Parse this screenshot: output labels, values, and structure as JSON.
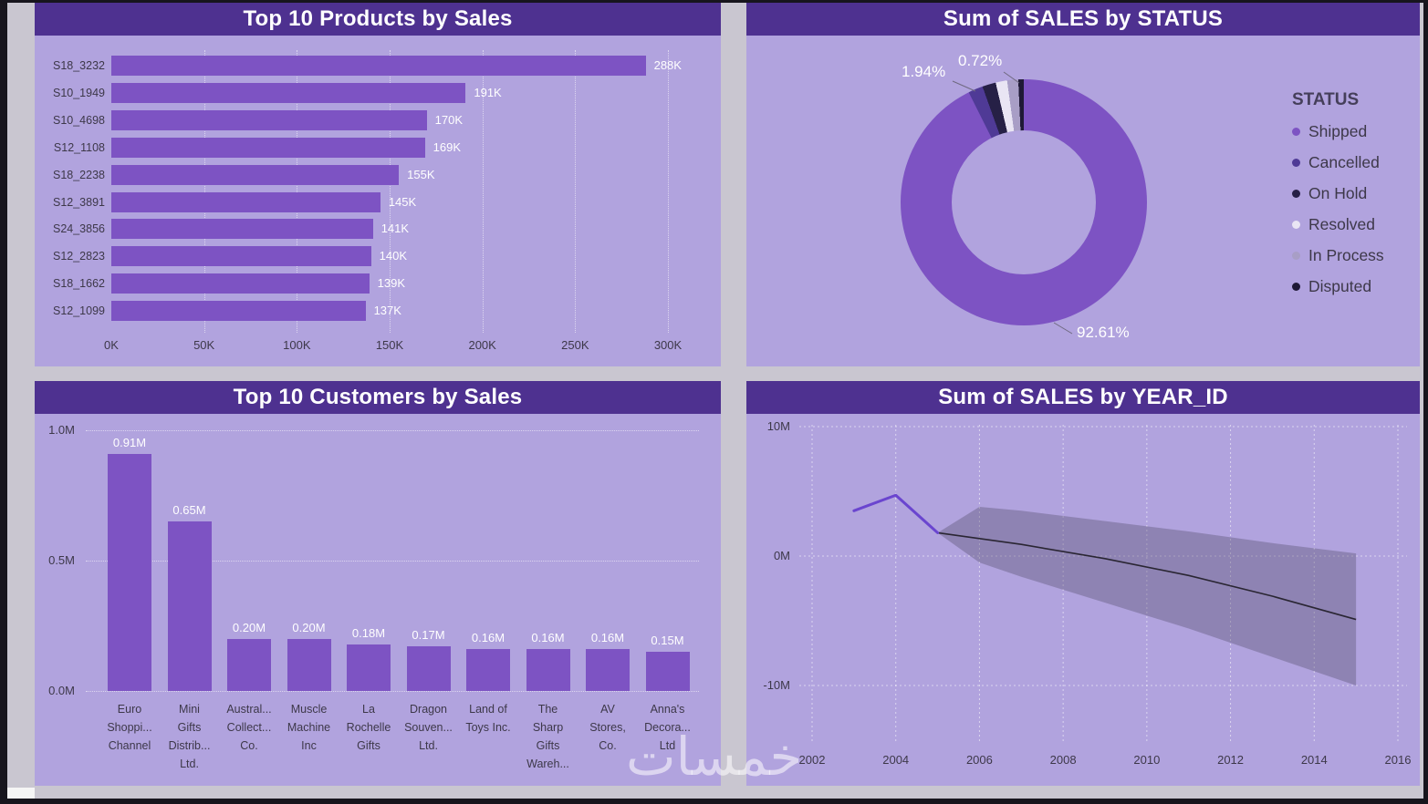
{
  "watermark": "خمسات",
  "theme": {
    "page_bg": "#c9c6d0",
    "frame": "#17151d",
    "panel_bg": "#b1a3de",
    "title_bg": "#4e3190",
    "title_text": "#ffffff",
    "axis_text": "#3d3849",
    "value_label_text": "#ffffff",
    "gridline": "rgba(255,255,255,0.55)"
  },
  "chart_data": [
    {
      "type": "bar",
      "orientation": "horizontal",
      "title": "Top 10 Products by Sales",
      "categories": [
        "S18_3232",
        "S10_1949",
        "S10_4698",
        "S12_1108",
        "S18_2238",
        "S12_3891",
        "S24_3856",
        "S12_2823",
        "S18_1662",
        "S12_1099"
      ],
      "values": [
        288,
        191,
        170,
        169,
        155,
        145,
        141,
        140,
        139,
        137
      ],
      "unit": "K",
      "value_labels": [
        "288K",
        "191K",
        "170K",
        "169K",
        "155K",
        "145K",
        "141K",
        "140K",
        "139K",
        "137K"
      ],
      "x_ticks": [
        "0K",
        "50K",
        "100K",
        "150K",
        "200K",
        "250K",
        "300K"
      ],
      "x_tick_values": [
        0,
        50,
        100,
        150,
        200,
        250,
        300
      ],
      "xlim": [
        0,
        300
      ],
      "bar_color": "#7d53c3"
    },
    {
      "type": "pie",
      "subtype": "donut",
      "title": "Sum of SALES by STATUS",
      "legend_title": "STATUS",
      "legend_position": "right",
      "segments": [
        {
          "label": "Shipped",
          "pct": 92.61,
          "color": "#7d53c3",
          "data_label": "92.61%"
        },
        {
          "label": "Cancelled",
          "pct": 1.94,
          "color": "#4f3a96",
          "data_label": "1.94%"
        },
        {
          "label": "On Hold",
          "pct": 1.78,
          "color": "#262046",
          "data_label": ""
        },
        {
          "label": "Resolved",
          "pct": 1.5,
          "color": "#e9e5f4",
          "data_label": ""
        },
        {
          "label": "In Process",
          "pct": 1.45,
          "color": "#a89ec6",
          "data_label": ""
        },
        {
          "label": "Disputed",
          "pct": 0.72,
          "color": "#1f1936",
          "data_label": "0.72%"
        }
      ]
    },
    {
      "type": "bar",
      "orientation": "vertical",
      "title": "Top 10 Customers by Sales",
      "categories": [
        [
          "Euro",
          "Shoppi...",
          "Channel"
        ],
        [
          "Mini",
          "Gifts",
          "Distrib...",
          "Ltd."
        ],
        [
          "Austral...",
          "Collect...",
          "Co."
        ],
        [
          "Muscle",
          "Machine",
          "Inc"
        ],
        [
          "La",
          "Rochelle",
          "Gifts"
        ],
        [
          "Dragon",
          "Souven...",
          "Ltd."
        ],
        [
          "Land of",
          "Toys Inc."
        ],
        [
          "The",
          "Sharp",
          "Gifts",
          "Wareh..."
        ],
        [
          "AV",
          "Stores,",
          "Co."
        ],
        [
          "Anna's",
          "Decora...",
          "Ltd"
        ]
      ],
      "values": [
        0.91,
        0.65,
        0.2,
        0.2,
        0.18,
        0.17,
        0.16,
        0.16,
        0.16,
        0.15
      ],
      "unit": "M",
      "value_labels": [
        "0.91M",
        "0.65M",
        "0.20M",
        "0.20M",
        "0.18M",
        "0.17M",
        "0.16M",
        "0.16M",
        "0.16M",
        "0.15M"
      ],
      "y_ticks": [
        "1.0M",
        "0.5M",
        "0.0M"
      ],
      "y_tick_values": [
        1.0,
        0.5,
        0.0
      ],
      "ylim": [
        0,
        1.0
      ],
      "bar_color": "#7d53c3"
    },
    {
      "type": "line",
      "title": "Sum of SALES by YEAR_ID",
      "x_ticks": [
        2002,
        2004,
        2006,
        2008,
        2010,
        2012,
        2014,
        2016
      ],
      "xlim": [
        2002,
        2016
      ],
      "y_ticks": [
        "10M",
        "0M",
        "-10M"
      ],
      "y_tick_values": [
        10,
        0,
        -10
      ],
      "ylim": [
        -10,
        10
      ],
      "unit": "M",
      "actual": {
        "name": "Sum of SALES",
        "x": [
          2003,
          2004,
          2005
        ],
        "y": [
          3.5,
          4.7,
          1.8
        ],
        "color": "#6a45cf"
      },
      "forecast": {
        "name": "Forecast",
        "x": [
          2005,
          2007,
          2009,
          2011,
          2013,
          2015
        ],
        "y": [
          1.8,
          0.9,
          -0.2,
          -1.5,
          -3.1,
          -4.9
        ],
        "color": "#2a2633"
      },
      "confidence_band": {
        "x": [
          2005,
          2006,
          2007,
          2009,
          2011,
          2013,
          2015
        ],
        "upper": [
          1.8,
          3.8,
          3.5,
          2.7,
          1.9,
          1.0,
          0.2
        ],
        "lower": [
          1.8,
          -0.5,
          -1.6,
          -3.6,
          -5.6,
          -7.8,
          -10
        ],
        "color": "rgba(88,80,110,0.38)"
      }
    }
  ]
}
